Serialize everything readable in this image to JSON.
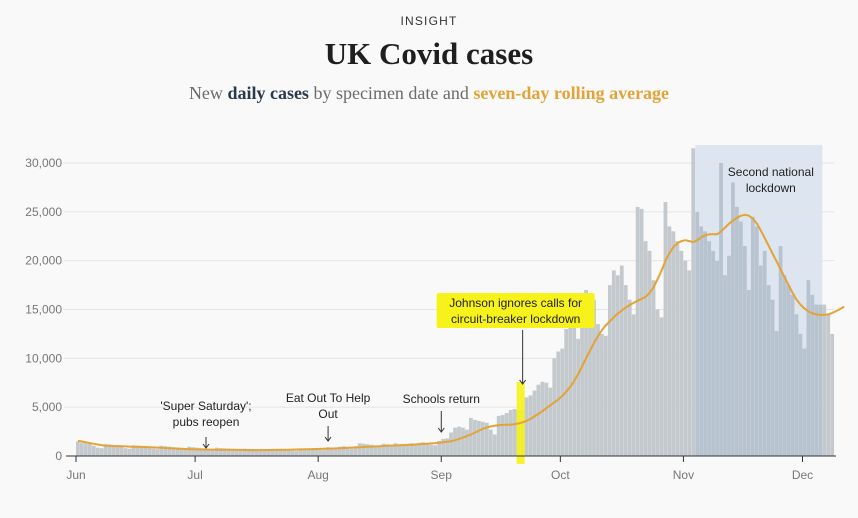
{
  "header": {
    "kicker": "INSIGHT",
    "title": "UK Covid cases",
    "subtitle_pre": "New ",
    "subtitle_daily": "daily cases",
    "subtitle_mid": " by specimen date and ",
    "subtitle_avg": "seven-day rolling average"
  },
  "colors": {
    "bars": "#c3c9cc",
    "bars_lockdown": "#b7c3cf",
    "line": "#e3a336",
    "lockdown_shade": "#dde5f0",
    "highlight": "#f6f21a"
  },
  "chart_data": {
    "type": "bar",
    "title": "UK Covid cases",
    "ylim": [
      0,
      32000
    ],
    "yticks": [
      {
        "value": 0,
        "label": "0"
      },
      {
        "value": 5000,
        "label": "5,000"
      },
      {
        "value": 10000,
        "label": "10,000"
      },
      {
        "value": 15000,
        "label": "15,000"
      },
      {
        "value": 20000,
        "label": "20,000"
      },
      {
        "value": 25000,
        "label": "25,000"
      },
      {
        "value": 30000,
        "label": "30,000"
      }
    ],
    "xticks": [
      {
        "day": 0,
        "label": "Jun"
      },
      {
        "day": 30,
        "label": "Jul"
      },
      {
        "day": 61,
        "label": "Aug"
      },
      {
        "day": 92,
        "label": "Sep"
      },
      {
        "day": 122,
        "label": "Oct"
      },
      {
        "day": 153,
        "label": "Nov"
      },
      {
        "day": 183,
        "label": "Dec"
      }
    ],
    "bar_start_date": "2020-06-01",
    "series": [
      {
        "name": "daily cases",
        "values": [
          1500,
          1350,
          1300,
          1250,
          1050,
          850,
          800,
          1200,
          1150,
          1100,
          1050,
          950,
          800,
          750,
          1100,
          1050,
          1000,
          980,
          900,
          750,
          700,
          1050,
          1000,
          950,
          900,
          850,
          700,
          650,
          950,
          900,
          850,
          800,
          750,
          650,
          600,
          850,
          800,
          780,
          750,
          700,
          600,
          550,
          750,
          720,
          700,
          680,
          650,
          580,
          560,
          700,
          680,
          650,
          630,
          620,
          550,
          530,
          680,
          660,
          650,
          640,
          700,
          650,
          620,
          900,
          880,
          870,
          950,
          1000,
          800,
          750,
          1000,
          1300,
          1250,
          1200,
          1150,
          1050,
          950,
          1250,
          1200,
          1150,
          1300,
          1200,
          1100,
          1050,
          1300,
          1250,
          1350,
          1400,
          1250,
          1150,
          1100,
          1550,
          1750,
          1800,
          2400,
          2900,
          3000,
          2900,
          2700,
          3900,
          3700,
          3600,
          3500,
          3400,
          2700,
          2200,
          4100,
          4200,
          4400,
          4700,
          4800,
          4600,
          4700,
          6000,
          6200,
          6700,
          7300,
          7600,
          7500,
          7000,
          10000,
          10700,
          11000,
          13000,
          13500,
          14000,
          12000,
          15000,
          17000,
          15000,
          16000,
          13500,
          12500,
          12300,
          17500,
          19000,
          18500,
          19500,
          17500,
          16000,
          14500,
          25500,
          25300,
          22000,
          21000,
          18000,
          15000,
          14200,
          26000,
          23500,
          23000,
          22000,
          21000,
          20000,
          19000,
          31500,
          25000,
          23500,
          23000,
          22000,
          21000,
          20000,
          30000,
          18500,
          20500,
          28000,
          25500,
          24000,
          21500,
          17000,
          24500,
          23500,
          19500,
          21000,
          17500,
          16000,
          12800,
          21500,
          18500,
          17500,
          16500,
          14500,
          12500,
          11000,
          18000,
          16500,
          15500,
          15500,
          15500,
          14500,
          12500
        ]
      },
      {
        "name": "seven-day rolling average",
        "values": [
          1550,
          1480,
          1400,
          1320,
          1250,
          1180,
          1110,
          1060,
          1040,
          1020,
          1010,
          1000,
          980,
          960,
          950,
          940,
          930,
          920,
          900,
          880,
          860,
          840,
          820,
          800,
          780,
          760,
          740,
          720,
          700,
          690,
          680,
          670,
          665,
          660,
          655,
          650,
          645,
          640,
          635,
          630,
          625,
          620,
          615,
          610,
          605,
          600,
          605,
          610,
          615,
          620,
          625,
          630,
          640,
          650,
          660,
          670,
          680,
          690,
          700,
          710,
          720,
          730,
          740,
          750,
          760,
          780,
          800,
          820,
          840,
          860,
          880,
          900,
          920,
          940,
          960,
          980,
          1000,
          1020,
          1040,
          1060,
          1080,
          1100,
          1120,
          1140,
          1160,
          1180,
          1200,
          1230,
          1260,
          1290,
          1320,
          1360,
          1400,
          1460,
          1520,
          1620,
          1750,
          1900,
          2050,
          2200,
          2400,
          2600,
          2780,
          2920,
          3030,
          3100,
          3150,
          3180,
          3200,
          3220,
          3260,
          3340,
          3450,
          3600,
          3800,
          4050,
          4320,
          4600,
          4900,
          5200,
          5500,
          5800,
          6150,
          6600,
          7100,
          7700,
          8400,
          9200,
          10000,
          10800,
          11600,
          12300,
          12900,
          13400,
          13800,
          14200,
          14600,
          14900,
          15200,
          15450,
          15700,
          15900,
          16100,
          16300,
          16700,
          17300,
          18100,
          19000,
          20000,
          20800,
          21400,
          21800,
          22000,
          22100,
          22000,
          21900,
          22100,
          22400,
          22600,
          22700,
          22700,
          22700,
          23000,
          23400,
          23800,
          24100,
          24400,
          24600,
          24700,
          24600,
          24300,
          23800,
          23100,
          22300,
          21500,
          20700,
          19900,
          19100,
          18300,
          17500,
          16700,
          16000,
          15500,
          15100,
          14800,
          14600,
          14500,
          14450,
          14450,
          14500,
          14650,
          14850,
          15050,
          15300
        ]
      }
    ],
    "lockdown_days": [
      156,
      188
    ],
    "annotations": [
      {
        "day": 33,
        "lines": [
          "'Super Saturday';",
          "pubs reopen"
        ]
      },
      {
        "day": 64,
        "lines": [
          "Eat Out To Help",
          "Out"
        ]
      },
      {
        "day": 91,
        "lines": [
          "Schools return"
        ]
      },
      {
        "day": 112,
        "lines": [
          "Johnson ignores calls for",
          "circuit-breaker lockdown"
        ]
      },
      {
        "day": 172,
        "lines": [
          "Second national",
          "lockdown"
        ]
      }
    ]
  }
}
